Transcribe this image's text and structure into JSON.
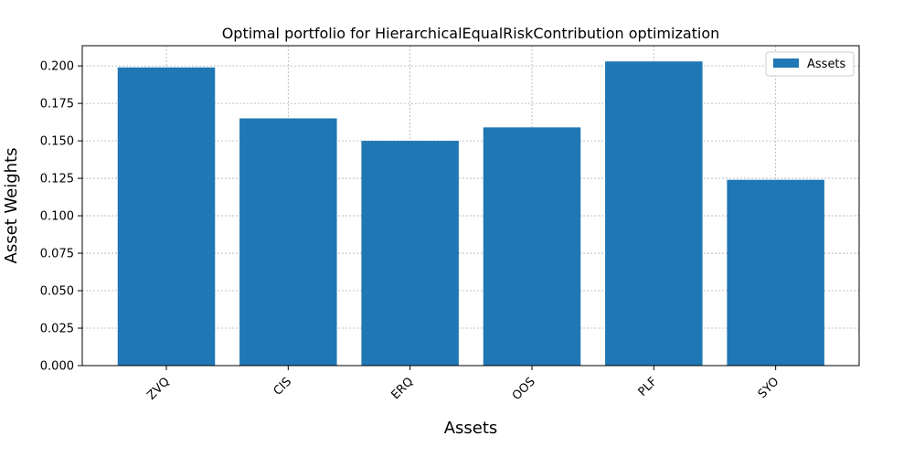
{
  "chart_data": {
    "type": "bar",
    "title": "Optimal portfolio for HierarchicalEqualRiskContribution optimization",
    "xlabel": "Assets",
    "ylabel": "Asset Weights",
    "categories": [
      "ZVQ",
      "CIS",
      "ERQ",
      "OOS",
      "PLF",
      "SYO"
    ],
    "series": [
      {
        "name": "Assets",
        "values": [
          0.199,
          0.165,
          0.15,
          0.159,
          0.203,
          0.124
        ],
        "color": "#1f77b4"
      }
    ],
    "ylim": [
      0,
      0.2135
    ],
    "yticks": [
      "0.000",
      "0.025",
      "0.050",
      "0.075",
      "0.100",
      "0.125",
      "0.150",
      "0.175",
      "0.200"
    ],
    "grid": true,
    "legend_position": "top-right",
    "xtick_rotation": 45
  }
}
